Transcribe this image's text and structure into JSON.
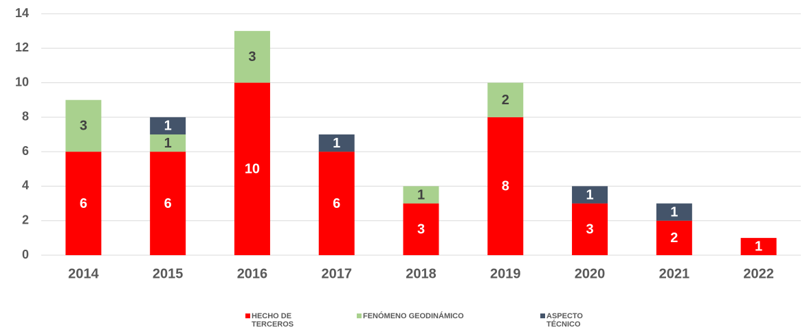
{
  "chart_data": {
    "type": "stacked_bar",
    "categories": [
      "2014",
      "2015",
      "2016",
      "2017",
      "2018",
      "2019",
      "2020",
      "2021",
      "2022"
    ],
    "series": [
      {
        "name": "HECHO DE TERCEROS",
        "color": "#ff0000",
        "values": [
          6,
          6,
          10,
          6,
          3,
          8,
          3,
          2,
          1
        ]
      },
      {
        "name": "FENÓMENO GEODINÁMICO",
        "color": "#a9d18e",
        "values": [
          3,
          1,
          3,
          null,
          1,
          2,
          null,
          null,
          null
        ]
      },
      {
        "name": "ASPECTO TÉCNICO",
        "color": "#44546a",
        "values": [
          null,
          1,
          null,
          1,
          null,
          null,
          1,
          1,
          null
        ]
      }
    ],
    "ylim": [
      0,
      14
    ],
    "yticks": [
      0,
      2,
      4,
      6,
      8,
      10,
      12,
      14
    ],
    "grid": true
  }
}
